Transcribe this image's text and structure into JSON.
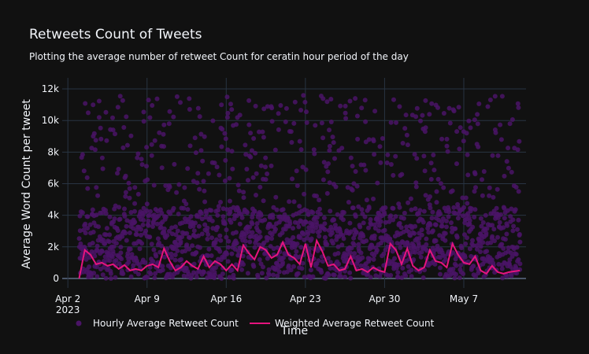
{
  "chart_data": {
    "type": "scatter",
    "title": "Retweets Count of Tweets",
    "subtitle": "Plotting the average number of retweet Count for ceratin hour period of the day",
    "xlabel": "Time",
    "ylabel": "Average Word Count per tweet",
    "x_range": [
      "2023-04-01T12:00",
      "2023-05-12T12:00"
    ],
    "ylim": [
      -600,
      12700
    ],
    "x_ticks": [
      {
        "date": "2023-04-02",
        "label": "Apr 2",
        "sublabel": "2023"
      },
      {
        "date": "2023-04-09",
        "label": "Apr 9"
      },
      {
        "date": "2023-04-16",
        "label": "Apr 16"
      },
      {
        "date": "2023-04-23",
        "label": "Apr 23"
      },
      {
        "date": "2023-04-30",
        "label": "Apr 30"
      },
      {
        "date": "2023-05-07",
        "label": "May 7"
      }
    ],
    "y_ticks": [
      {
        "value": 0,
        "label": "0"
      },
      {
        "value": 2000,
        "label": "2k"
      },
      {
        "value": 4000,
        "label": "4k"
      },
      {
        "value": 6000,
        "label": "6k"
      },
      {
        "value": 8000,
        "label": "8k"
      },
      {
        "value": 10000,
        "label": "10k"
      },
      {
        "value": 12000,
        "label": "12k"
      }
    ],
    "grid": true,
    "legend_position": "bottom",
    "series": [
      {
        "name": "Hourly Average Retweet Count",
        "type": "scatter",
        "color": "#4a1466",
        "x_start": "2023-04-03T00:00",
        "x_end": "2023-05-11T23:00",
        "points_per_day": 24,
        "dense_band_max": 4500,
        "sparse_upper_max": 11600
      },
      {
        "name": "Weighted Average Retweet Count",
        "type": "line",
        "color": "#e5147e",
        "x": [
          "2023-04-03T00:00",
          "2023-04-03T12:00",
          "2023-04-04T00:00",
          "2023-04-04T12:00",
          "2023-04-05T00:00",
          "2023-04-05T12:00",
          "2023-04-06T00:00",
          "2023-04-06T12:00",
          "2023-04-07T00:00",
          "2023-04-07T12:00",
          "2023-04-08T00:00",
          "2023-04-08T12:00",
          "2023-04-09T00:00",
          "2023-04-09T12:00",
          "2023-04-10T00:00",
          "2023-04-10T12:00",
          "2023-04-11T00:00",
          "2023-04-11T12:00",
          "2023-04-12T00:00",
          "2023-04-12T12:00",
          "2023-04-13T00:00",
          "2023-04-13T12:00",
          "2023-04-14T00:00",
          "2023-04-14T12:00",
          "2023-04-15T00:00",
          "2023-04-15T12:00",
          "2023-04-16T00:00",
          "2023-04-16T12:00",
          "2023-04-17T00:00",
          "2023-04-17T12:00",
          "2023-04-18T00:00",
          "2023-04-18T12:00",
          "2023-04-19T00:00",
          "2023-04-19T12:00",
          "2023-04-20T00:00",
          "2023-04-20T12:00",
          "2023-04-21T00:00",
          "2023-04-21T12:00",
          "2023-04-22T00:00",
          "2023-04-22T12:00",
          "2023-04-23T00:00",
          "2023-04-23T12:00",
          "2023-04-24T00:00",
          "2023-04-24T12:00",
          "2023-04-25T00:00",
          "2023-04-25T12:00",
          "2023-04-26T00:00",
          "2023-04-26T12:00",
          "2023-04-27T00:00",
          "2023-04-27T12:00",
          "2023-04-28T00:00",
          "2023-04-28T12:00",
          "2023-04-29T00:00",
          "2023-04-29T12:00",
          "2023-04-30T00:00",
          "2023-04-30T12:00",
          "2023-05-01T00:00",
          "2023-05-01T12:00",
          "2023-05-02T00:00",
          "2023-05-02T12:00",
          "2023-05-03T00:00",
          "2023-05-03T12:00",
          "2023-05-04T00:00",
          "2023-05-04T12:00",
          "2023-05-05T00:00",
          "2023-05-05T12:00",
          "2023-05-06T00:00",
          "2023-05-06T12:00",
          "2023-05-07T00:00",
          "2023-05-07T12:00",
          "2023-05-08T00:00",
          "2023-05-08T12:00",
          "2023-05-09T00:00",
          "2023-05-09T12:00",
          "2023-05-10T00:00",
          "2023-05-10T12:00",
          "2023-05-11T00:00",
          "2023-05-11T23:00"
        ],
        "y": [
          0,
          1800,
          1500,
          900,
          1000,
          800,
          900,
          600,
          850,
          500,
          600,
          500,
          800,
          900,
          700,
          1900,
          1100,
          500,
          700,
          1100,
          800,
          600,
          1400,
          700,
          1100,
          900,
          500,
          900,
          500,
          2100,
          1600,
          1200,
          2000,
          1800,
          1300,
          1500,
          2300,
          1500,
          1300,
          900,
          2200,
          700,
          2400,
          1700,
          800,
          900,
          500,
          600,
          1400,
          500,
          600,
          400,
          700,
          500,
          400,
          2200,
          1800,
          900,
          1900,
          800,
          500,
          700,
          1800,
          1100,
          1000,
          700,
          2200,
          1500,
          1000,
          900,
          1400,
          500,
          300,
          800,
          400,
          300,
          400,
          500
        ]
      }
    ]
  }
}
